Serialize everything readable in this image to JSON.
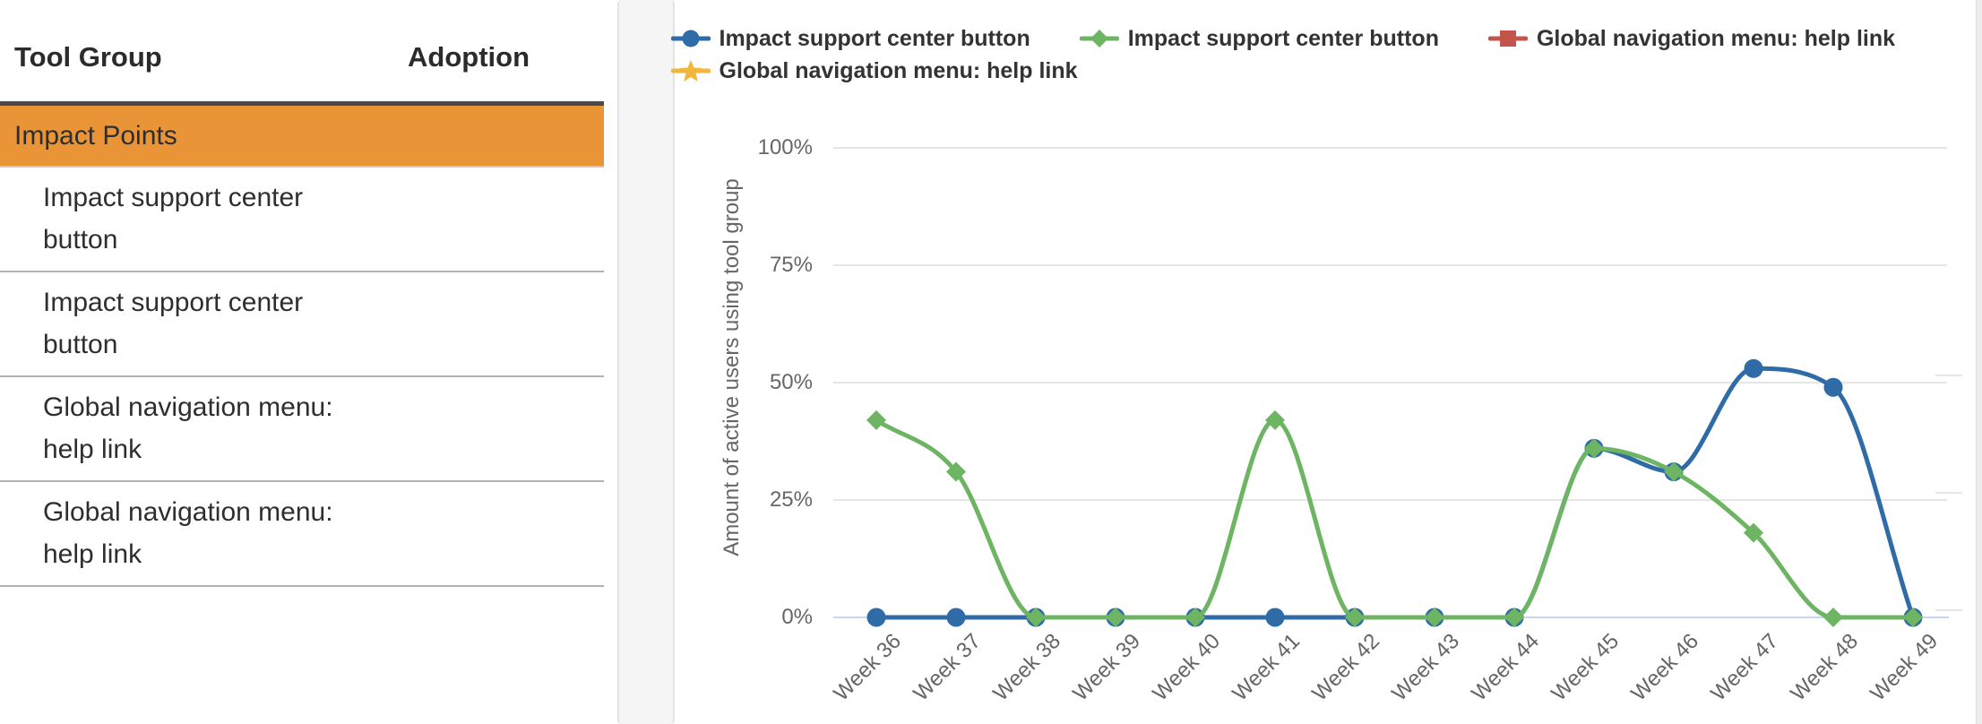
{
  "table": {
    "columns": [
      "Tool Group",
      "Adoption"
    ],
    "group_label": "Impact Points",
    "rows": [
      {
        "tool": "Impact support center button",
        "adoption": ""
      },
      {
        "tool": "Impact support center button",
        "adoption": ""
      },
      {
        "tool": "Global navigation menu: help link",
        "adoption": ""
      },
      {
        "tool": "Global navigation menu: help link",
        "adoption": ""
      }
    ]
  },
  "chart_data": {
    "type": "line",
    "x": [
      "Week 36",
      "Week 37",
      "Week 38",
      "Week 39",
      "Week 40",
      "Week 41",
      "Week 42",
      "Week 43",
      "Week 44",
      "Week 45",
      "Week 46",
      "Week 47",
      "Week 48",
      "Week 49"
    ],
    "series": [
      {
        "name": "Impact support center button",
        "color": "#2f6ba7",
        "marker": "circle",
        "visible": true,
        "values": [
          0,
          0,
          0,
          0,
          0,
          0,
          0,
          0,
          0,
          36,
          31,
          53,
          49,
          0
        ]
      },
      {
        "name": "Impact support center button",
        "color": "#6db463",
        "marker": "diamond",
        "visible": true,
        "values": [
          42,
          31,
          0,
          0,
          0,
          42,
          0,
          0,
          0,
          36,
          31,
          18,
          0,
          0
        ]
      },
      {
        "name": "Global navigation menu: help link",
        "color": "#c2544c",
        "marker": "square",
        "visible": false,
        "values": []
      },
      {
        "name": "Global navigation menu: help link",
        "color": "#f3b53c",
        "marker": "star",
        "visible": false,
        "values": []
      }
    ],
    "title": "",
    "xlabel": "",
    "ylabel": "Amount of active users using tool group",
    "ylim": [
      0,
      100
    ],
    "yticks": [
      0,
      25,
      50,
      75,
      100
    ],
    "ytick_labels": [
      "0%",
      "25%",
      "50%",
      "75%",
      "100%"
    ],
    "grid": true,
    "legend_position": "top"
  },
  "colors": {
    "selected_row": "#e99537",
    "header_border": "#4a4a4a",
    "row_divider": "#b2b2b2",
    "gridline": "#e6e6e6",
    "axis_line": "#ccd6eb",
    "axis_text": "#666666",
    "legend_text": "#333333"
  }
}
